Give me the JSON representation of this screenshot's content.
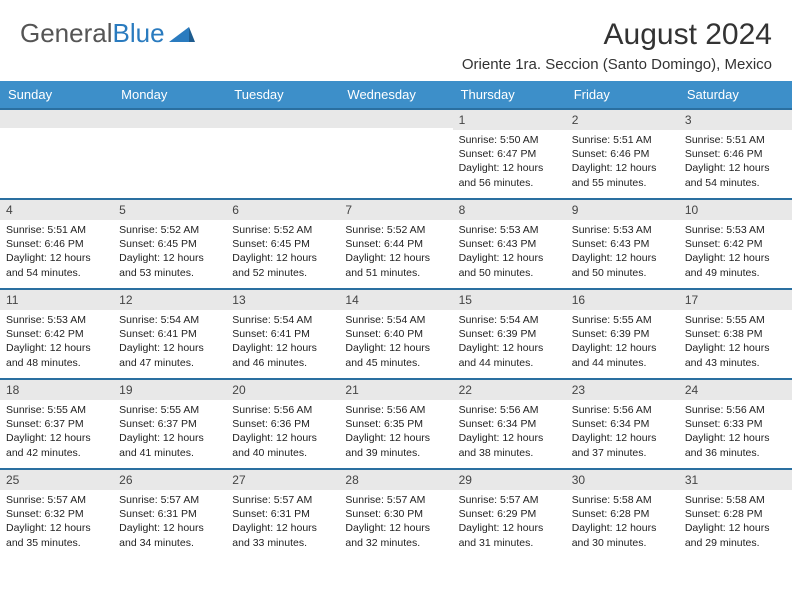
{
  "logo": {
    "text1": "General",
    "text2": "Blue"
  },
  "title": "August 2024",
  "location": "Oriente 1ra. Seccion (Santo Domingo), Mexico",
  "colors": {
    "header_bg": "#3d8fc9",
    "week_border": "#2a6fa0",
    "daynum_bg": "#e8e8e8",
    "text": "#222222"
  },
  "dayNames": [
    "Sunday",
    "Monday",
    "Tuesday",
    "Wednesday",
    "Thursday",
    "Friday",
    "Saturday"
  ],
  "weeks": [
    [
      {
        "num": "",
        "lines": []
      },
      {
        "num": "",
        "lines": []
      },
      {
        "num": "",
        "lines": []
      },
      {
        "num": "",
        "lines": []
      },
      {
        "num": "1",
        "lines": [
          "Sunrise: 5:50 AM",
          "Sunset: 6:47 PM",
          "Daylight: 12 hours and 56 minutes."
        ]
      },
      {
        "num": "2",
        "lines": [
          "Sunrise: 5:51 AM",
          "Sunset: 6:46 PM",
          "Daylight: 12 hours and 55 minutes."
        ]
      },
      {
        "num": "3",
        "lines": [
          "Sunrise: 5:51 AM",
          "Sunset: 6:46 PM",
          "Daylight: 12 hours and 54 minutes."
        ]
      }
    ],
    [
      {
        "num": "4",
        "lines": [
          "Sunrise: 5:51 AM",
          "Sunset: 6:46 PM",
          "Daylight: 12 hours and 54 minutes."
        ]
      },
      {
        "num": "5",
        "lines": [
          "Sunrise: 5:52 AM",
          "Sunset: 6:45 PM",
          "Daylight: 12 hours and 53 minutes."
        ]
      },
      {
        "num": "6",
        "lines": [
          "Sunrise: 5:52 AM",
          "Sunset: 6:45 PM",
          "Daylight: 12 hours and 52 minutes."
        ]
      },
      {
        "num": "7",
        "lines": [
          "Sunrise: 5:52 AM",
          "Sunset: 6:44 PM",
          "Daylight: 12 hours and 51 minutes."
        ]
      },
      {
        "num": "8",
        "lines": [
          "Sunrise: 5:53 AM",
          "Sunset: 6:43 PM",
          "Daylight: 12 hours and 50 minutes."
        ]
      },
      {
        "num": "9",
        "lines": [
          "Sunrise: 5:53 AM",
          "Sunset: 6:43 PM",
          "Daylight: 12 hours and 50 minutes."
        ]
      },
      {
        "num": "10",
        "lines": [
          "Sunrise: 5:53 AM",
          "Sunset: 6:42 PM",
          "Daylight: 12 hours and 49 minutes."
        ]
      }
    ],
    [
      {
        "num": "11",
        "lines": [
          "Sunrise: 5:53 AM",
          "Sunset: 6:42 PM",
          "Daylight: 12 hours and 48 minutes."
        ]
      },
      {
        "num": "12",
        "lines": [
          "Sunrise: 5:54 AM",
          "Sunset: 6:41 PM",
          "Daylight: 12 hours and 47 minutes."
        ]
      },
      {
        "num": "13",
        "lines": [
          "Sunrise: 5:54 AM",
          "Sunset: 6:41 PM",
          "Daylight: 12 hours and 46 minutes."
        ]
      },
      {
        "num": "14",
        "lines": [
          "Sunrise: 5:54 AM",
          "Sunset: 6:40 PM",
          "Daylight: 12 hours and 45 minutes."
        ]
      },
      {
        "num": "15",
        "lines": [
          "Sunrise: 5:54 AM",
          "Sunset: 6:39 PM",
          "Daylight: 12 hours and 44 minutes."
        ]
      },
      {
        "num": "16",
        "lines": [
          "Sunrise: 5:55 AM",
          "Sunset: 6:39 PM",
          "Daylight: 12 hours and 44 minutes."
        ]
      },
      {
        "num": "17",
        "lines": [
          "Sunrise: 5:55 AM",
          "Sunset: 6:38 PM",
          "Daylight: 12 hours and 43 minutes."
        ]
      }
    ],
    [
      {
        "num": "18",
        "lines": [
          "Sunrise: 5:55 AM",
          "Sunset: 6:37 PM",
          "Daylight: 12 hours and 42 minutes."
        ]
      },
      {
        "num": "19",
        "lines": [
          "Sunrise: 5:55 AM",
          "Sunset: 6:37 PM",
          "Daylight: 12 hours and 41 minutes."
        ]
      },
      {
        "num": "20",
        "lines": [
          "Sunrise: 5:56 AM",
          "Sunset: 6:36 PM",
          "Daylight: 12 hours and 40 minutes."
        ]
      },
      {
        "num": "21",
        "lines": [
          "Sunrise: 5:56 AM",
          "Sunset: 6:35 PM",
          "Daylight: 12 hours and 39 minutes."
        ]
      },
      {
        "num": "22",
        "lines": [
          "Sunrise: 5:56 AM",
          "Sunset: 6:34 PM",
          "Daylight: 12 hours and 38 minutes."
        ]
      },
      {
        "num": "23",
        "lines": [
          "Sunrise: 5:56 AM",
          "Sunset: 6:34 PM",
          "Daylight: 12 hours and 37 minutes."
        ]
      },
      {
        "num": "24",
        "lines": [
          "Sunrise: 5:56 AM",
          "Sunset: 6:33 PM",
          "Daylight: 12 hours and 36 minutes."
        ]
      }
    ],
    [
      {
        "num": "25",
        "lines": [
          "Sunrise: 5:57 AM",
          "Sunset: 6:32 PM",
          "Daylight: 12 hours and 35 minutes."
        ]
      },
      {
        "num": "26",
        "lines": [
          "Sunrise: 5:57 AM",
          "Sunset: 6:31 PM",
          "Daylight: 12 hours and 34 minutes."
        ]
      },
      {
        "num": "27",
        "lines": [
          "Sunrise: 5:57 AM",
          "Sunset: 6:31 PM",
          "Daylight: 12 hours and 33 minutes."
        ]
      },
      {
        "num": "28",
        "lines": [
          "Sunrise: 5:57 AM",
          "Sunset: 6:30 PM",
          "Daylight: 12 hours and 32 minutes."
        ]
      },
      {
        "num": "29",
        "lines": [
          "Sunrise: 5:57 AM",
          "Sunset: 6:29 PM",
          "Daylight: 12 hours and 31 minutes."
        ]
      },
      {
        "num": "30",
        "lines": [
          "Sunrise: 5:58 AM",
          "Sunset: 6:28 PM",
          "Daylight: 12 hours and 30 minutes."
        ]
      },
      {
        "num": "31",
        "lines": [
          "Sunrise: 5:58 AM",
          "Sunset: 6:28 PM",
          "Daylight: 12 hours and 29 minutes."
        ]
      }
    ]
  ]
}
